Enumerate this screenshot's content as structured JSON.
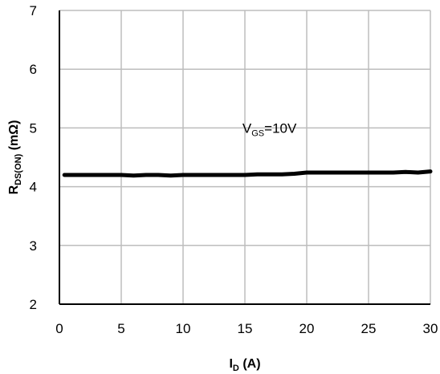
{
  "chart_data": {
    "type": "line",
    "title": "",
    "xlabel": {
      "main": "I",
      "sub": "D",
      "rest": " (A)"
    },
    "ylabel": {
      "main": "R",
      "sub": "DS(ON)",
      "rest": " (mΩ)"
    },
    "xlim": [
      0,
      30
    ],
    "ylim": [
      2,
      7
    ],
    "xticks": [
      0,
      5,
      10,
      15,
      20,
      25,
      30
    ],
    "yticks": [
      2,
      3,
      4,
      5,
      6,
      7
    ],
    "grid": true,
    "series": [
      {
        "color": "#000000",
        "x": [
          0.4,
          2,
          4,
          5,
          6,
          7,
          8,
          9,
          10,
          11,
          12,
          13,
          14,
          15,
          16,
          17,
          18,
          19,
          20,
          21,
          22,
          23,
          24,
          25,
          26,
          27,
          28,
          29,
          30
        ],
        "y": [
          4.2,
          4.2,
          4.2,
          4.2,
          4.19,
          4.2,
          4.2,
          4.19,
          4.2,
          4.2,
          4.2,
          4.2,
          4.2,
          4.2,
          4.21,
          4.21,
          4.21,
          4.22,
          4.24,
          4.24,
          4.24,
          4.24,
          4.24,
          4.24,
          4.24,
          4.24,
          4.25,
          4.24,
          4.26
        ]
      }
    ],
    "annotations": [
      {
        "main": "V",
        "sub": "GS",
        "rest": "=10V",
        "x": 14.8,
        "y": 5.0
      }
    ]
  }
}
